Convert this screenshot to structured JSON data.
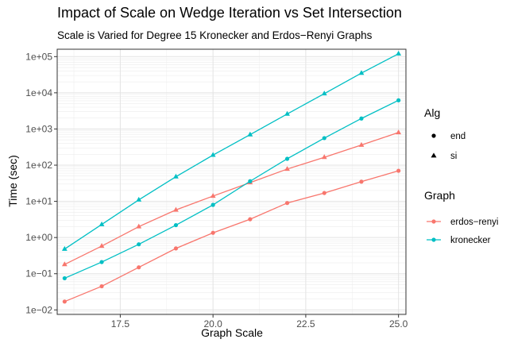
{
  "chart_data": {
    "type": "line",
    "title": "Impact of Scale on Wedge Iteration vs Set Intersection",
    "subtitle": "Scale is Varied for Degree 15 Kronecker and Erdos−Renyi Graphs",
    "xlabel": "Graph Scale",
    "ylabel": "Time (sec)",
    "xlim": [
      15.8,
      25.2
    ],
    "ylim": [
      0.0075,
      160000
    ],
    "y_scale": "log10",
    "x_ticks": [
      17.5,
      20.0,
      22.5,
      25.0
    ],
    "x_tick_labels": [
      "17.5",
      "20.0",
      "22.5",
      "25.0"
    ],
    "y_ticks": [
      0.01,
      0.1,
      1,
      10,
      100,
      1000,
      10000,
      100000
    ],
    "y_tick_labels": [
      "1e−02",
      "1e−01",
      "1e+00",
      "1e+01",
      "1e+02",
      "1e+03",
      "1e+04",
      "1e+05"
    ],
    "grid": true,
    "x": [
      16,
      17,
      18,
      19,
      20,
      21,
      22,
      23,
      24,
      25
    ],
    "series": [
      {
        "graph": "erdos-renyi",
        "alg": "end",
        "color": "#F8766D",
        "shape": "circle",
        "values": [
          0.017,
          0.045,
          0.15,
          0.5,
          1.35,
          3.2,
          9.0,
          17,
          35,
          70
        ]
      },
      {
        "graph": "erdos-renyi",
        "alg": "si",
        "color": "#F8766D",
        "shape": "triangle",
        "values": [
          0.18,
          0.58,
          2.0,
          5.8,
          14,
          33,
          78,
          165,
          360,
          800
        ]
      },
      {
        "graph": "kronecker",
        "alg": "end",
        "color": "#00BFC4",
        "shape": "circle",
        "values": [
          0.075,
          0.21,
          0.65,
          2.2,
          8.0,
          36,
          150,
          560,
          1950,
          6200
        ]
      },
      {
        "graph": "kronecker",
        "alg": "si",
        "color": "#00BFC4",
        "shape": "triangle",
        "values": [
          0.48,
          2.3,
          11,
          48,
          190,
          700,
          2600,
          9500,
          35000,
          120000
        ]
      }
    ],
    "legend": {
      "position": "right",
      "alg": {
        "title": "Alg",
        "items": [
          {
            "label": "end",
            "shape": "circle"
          },
          {
            "label": "si",
            "shape": "triangle"
          }
        ]
      },
      "graph": {
        "title": "Graph",
        "items": [
          {
            "label": "erdos−renyi",
            "color": "#F8766D"
          },
          {
            "label": "kronecker",
            "color": "#00BFC4"
          }
        ]
      }
    }
  }
}
